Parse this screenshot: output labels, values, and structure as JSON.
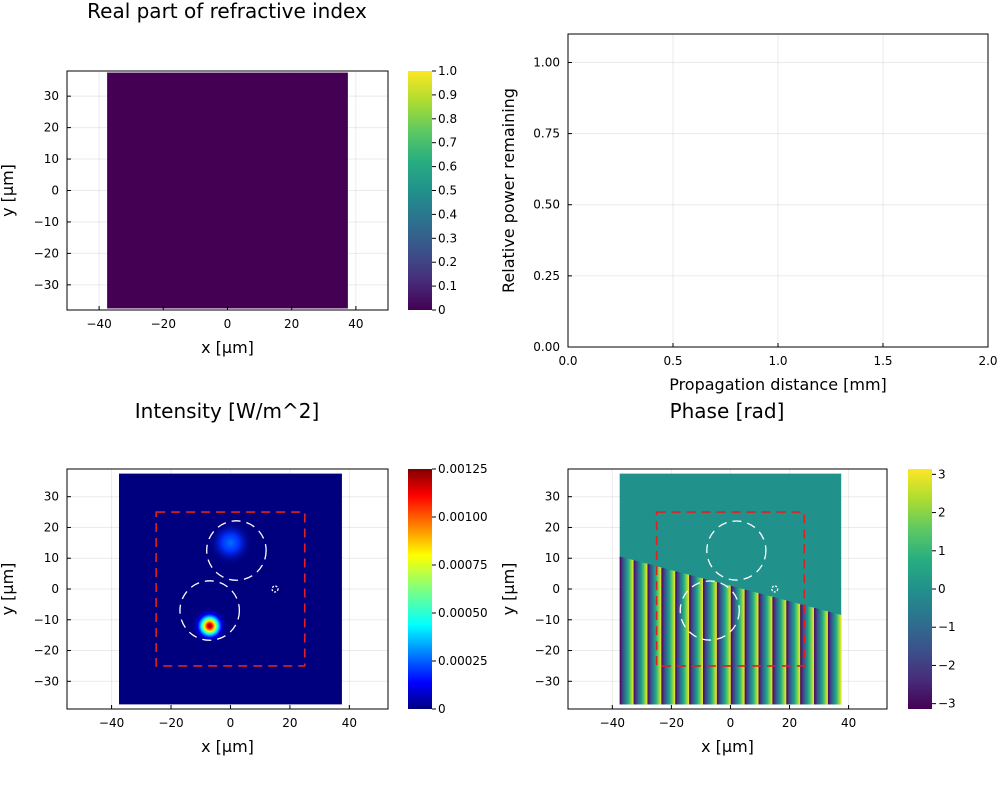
{
  "chart_data": [
    {
      "type": "heatmap",
      "title": "Real part of refractive index",
      "xlabel": "x [µm]",
      "ylabel": "y [µm]",
      "xlim": [
        -50,
        50
      ],
      "ylim": [
        -38,
        38
      ],
      "xticks": [
        -40,
        -20,
        0,
        20,
        40
      ],
      "yticks": [
        -30,
        -20,
        -10,
        0,
        10,
        20,
        30
      ],
      "extent": {
        "x": [
          -37.5,
          37.5
        ],
        "y": [
          -37.5,
          37.5
        ]
      },
      "field_value": 0,
      "colormap": "viridis",
      "colorbar": {
        "min": 0,
        "max": 1,
        "ticks": [
          "0",
          "0.1",
          "0.2",
          "0.3",
          "0.4",
          "0.5",
          "0.6",
          "0.7",
          "0.8",
          "0.9",
          "1.0"
        ]
      }
    },
    {
      "type": "line",
      "title": "",
      "xlabel": "Propagation distance [mm]",
      "ylabel": "Relative power remaining",
      "xlim": [
        0,
        2
      ],
      "ylim": [
        0,
        1.1
      ],
      "xticks": [
        "0.0",
        "0.5",
        "1.0",
        "1.5",
        "2.0"
      ],
      "yticks": [
        "0.00",
        "0.25",
        "0.50",
        "0.75",
        "1.00"
      ],
      "series": []
    },
    {
      "type": "heatmap",
      "title": "Intensity [W/m^2]",
      "xlabel": "x [µm]",
      "ylabel": "y [µm]",
      "xlim": [
        -55,
        53
      ],
      "ylim": [
        -39,
        39
      ],
      "xticks": [
        -40,
        -20,
        0,
        20,
        40
      ],
      "yticks": [
        -30,
        -20,
        -10,
        0,
        10,
        20,
        30
      ],
      "extent": {
        "x": [
          -37.5,
          37.5
        ],
        "y": [
          -37.5,
          37.5
        ]
      },
      "colormap": "jet",
      "colorbar": {
        "min": 0,
        "max": 0.00125,
        "ticks": [
          "0",
          "0.00025",
          "0.00050",
          "0.00075",
          "0.00100",
          "0.00125"
        ]
      },
      "peaks": [
        {
          "x": -7,
          "y": -12,
          "value": 0.00125,
          "sigma": 2.3
        },
        {
          "x": 0,
          "y": 15,
          "value": 0.0004,
          "sigma": 2.8
        }
      ],
      "annotations": {
        "dashed_rectangle": {
          "x": [
            -25,
            25
          ],
          "y": [
            -25,
            25
          ],
          "color": "#e02020"
        },
        "dashed_circles": [
          {
            "cx": 2,
            "cy": 12.5,
            "r": 10
          },
          {
            "cx": -7,
            "cy": -7,
            "r": 10
          },
          {
            "cx": 15,
            "cy": 0,
            "r": 1
          }
        ]
      }
    },
    {
      "type": "heatmap",
      "title": "Phase [rad]",
      "xlabel": "x [µm]",
      "ylabel": "y [µm]",
      "xlim": [
        -55,
        53
      ],
      "ylim": [
        -39,
        39
      ],
      "xticks": [
        -40,
        -20,
        0,
        20,
        40
      ],
      "yticks": [
        -30,
        -20,
        -10,
        0,
        10,
        20,
        30
      ],
      "extent": {
        "x": [
          -37.5,
          37.5
        ],
        "y": [
          -37.5,
          37.5
        ]
      },
      "colormap": "viridis",
      "colorbar": {
        "min": -3.14,
        "max": 3.14,
        "ticks": [
          "-3",
          "-2",
          "-1",
          "0",
          "1",
          "2",
          "3"
        ]
      },
      "uniform_phase": 0,
      "boundary": {
        "x": [
          -37.5,
          37.5
        ],
        "y": [
          10.5,
          -8.5
        ]
      },
      "stripe_period": 4.7,
      "annotations": {
        "dashed_rectangle": {
          "x": [
            -25,
            25
          ],
          "y": [
            -25,
            25
          ],
          "color": "#e02020"
        },
        "dashed_circles": [
          {
            "cx": 2,
            "cy": 12.5,
            "r": 10
          },
          {
            "cx": -7,
            "cy": -7,
            "r": 10
          },
          {
            "cx": 15,
            "cy": 0,
            "r": 1
          }
        ]
      }
    }
  ]
}
